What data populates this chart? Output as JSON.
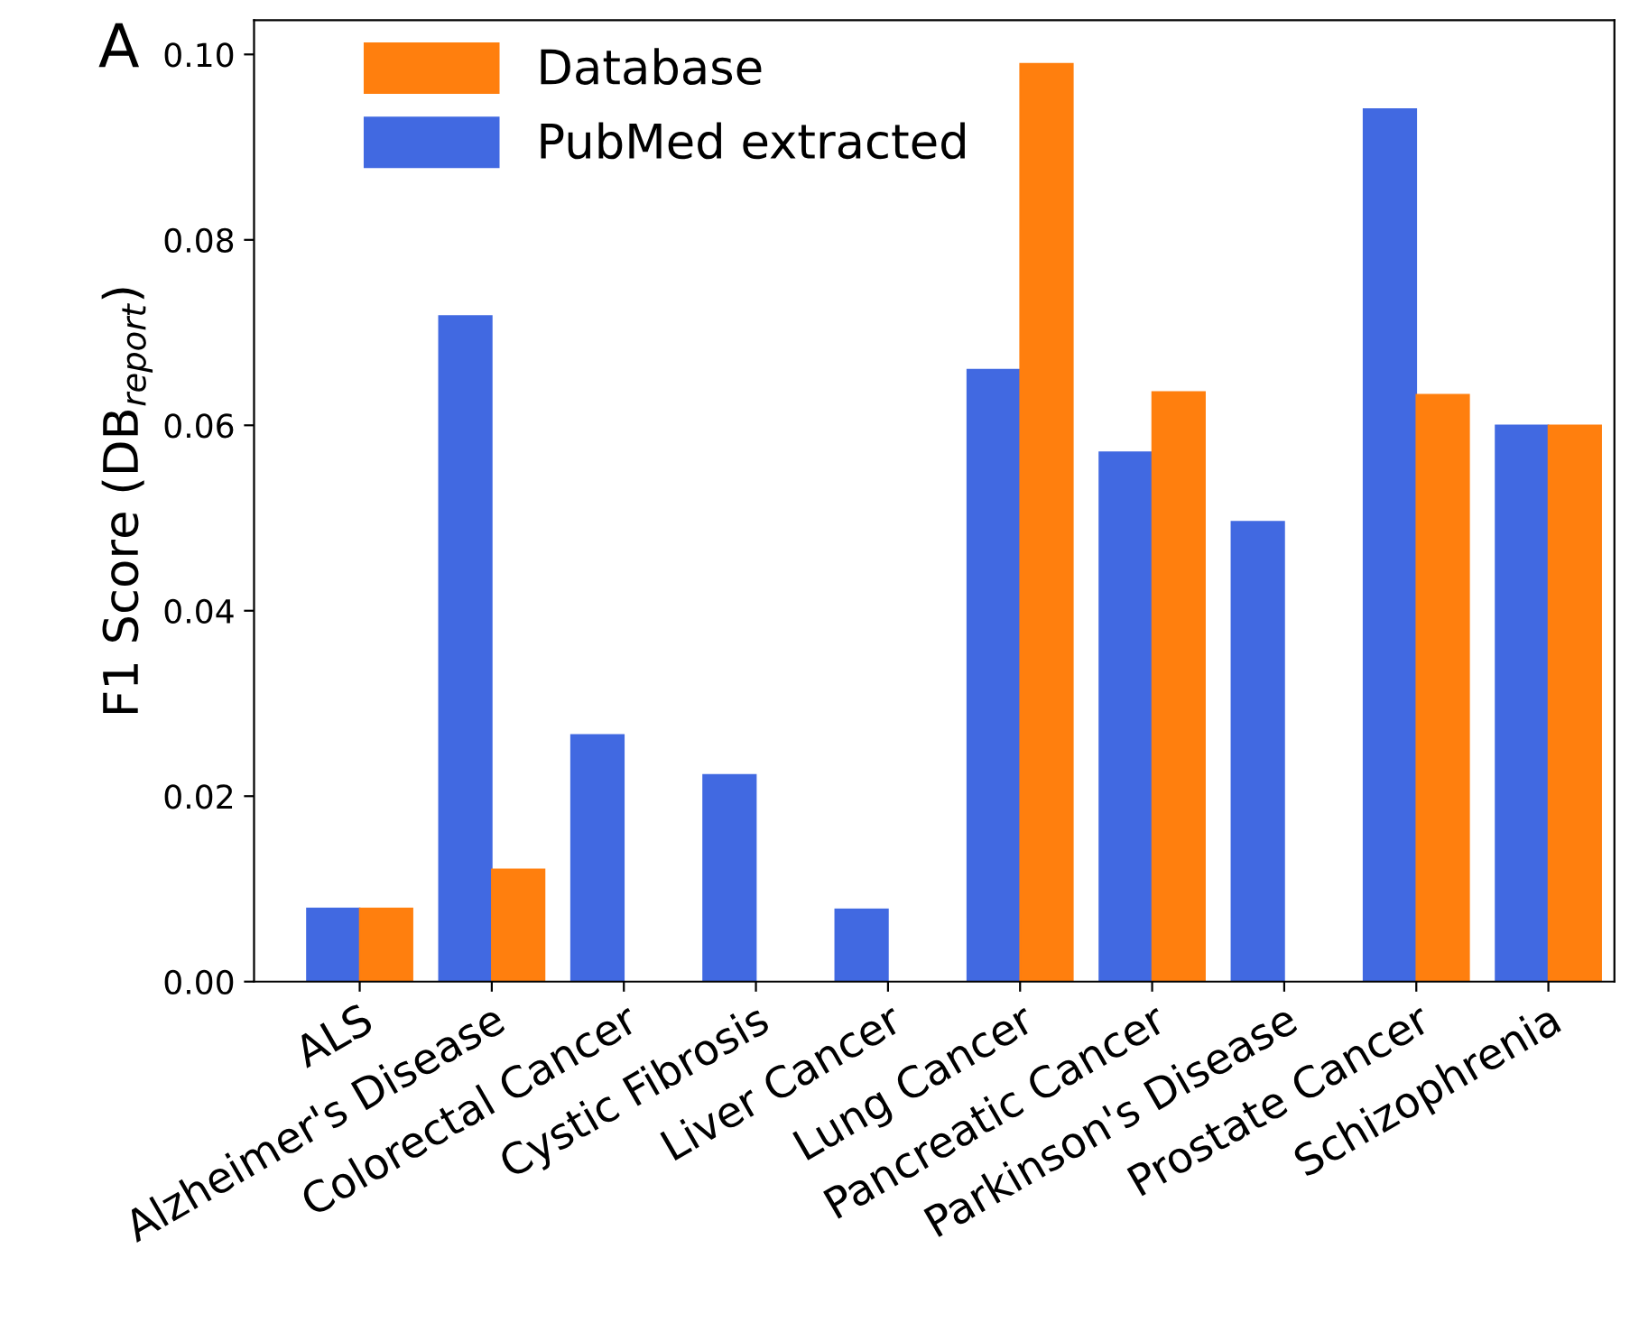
{
  "chart_data": {
    "type": "bar",
    "ylabel": "F1 Score (DB$_{report}$)",
    "annotations": [
      "A"
    ],
    "categories": [
      "ALS",
      "Alzheimer's Disease",
      "Colorectal Cancer",
      "Cystic Fibrosis",
      "Liver Cancer",
      "Lung Cancer",
      "Pancreatic Cancer",
      "Parkinson's Disease",
      "Prostate Cancer",
      "Schizophrenia"
    ],
    "series": [
      {
        "name": "PubMed extracted",
        "color": "#4169e1",
        "values": [
          0.0079,
          0.0718,
          0.0266,
          0.0223,
          0.0078,
          0.066,
          0.0571,
          0.0496,
          0.0941,
          0.06
        ]
      },
      {
        "name": "Database",
        "color": "#ff7f0e",
        "values": [
          0.0079,
          0.0121,
          0,
          0,
          0,
          0.099,
          0.0636,
          0,
          0.0633,
          0.06
        ]
      }
    ],
    "ylim": [
      0,
      0.1037
    ],
    "yticks": [
      {
        "value": 0,
        "label": "0.00"
      },
      {
        "value": 0.02,
        "label": "0.02"
      },
      {
        "value": 0.04,
        "label": "0.04"
      },
      {
        "value": 0.06,
        "label": "0.06"
      },
      {
        "value": 0.08,
        "label": "0.08"
      },
      {
        "value": 0.1,
        "label": "0.10"
      }
    ],
    "grid": false,
    "legend": "upper left"
  }
}
